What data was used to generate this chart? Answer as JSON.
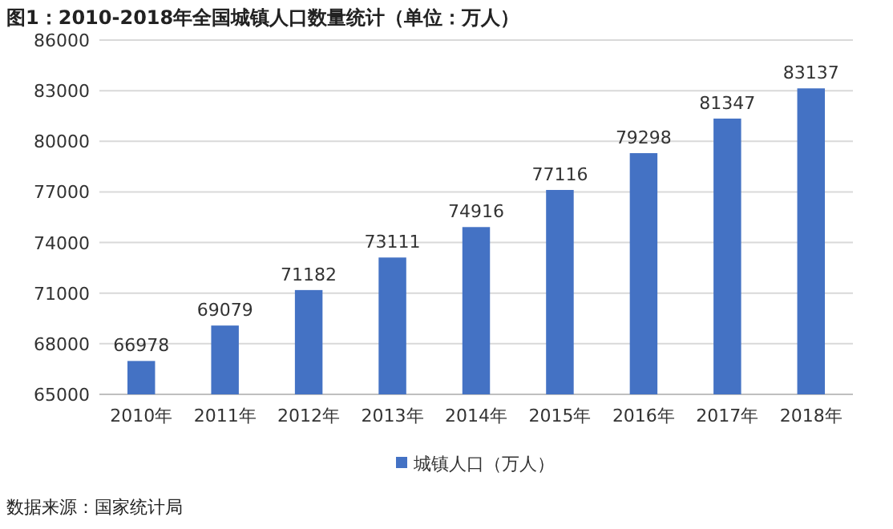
{
  "chart_data": {
    "type": "bar",
    "title": "图1：2010-2018年全国城镇人口数量统计（单位：万人）",
    "categories": [
      "2010年",
      "2011年",
      "2012年",
      "2013年",
      "2014年",
      "2015年",
      "2016年",
      "2017年",
      "2018年"
    ],
    "series": [
      {
        "name": "城镇人口（万人）",
        "color": "#4472c4",
        "values": [
          66978,
          69079,
          71182,
          73111,
          74916,
          77116,
          79298,
          81347,
          83137
        ]
      }
    ],
    "ylim": [
      65000,
      86000
    ],
    "yticks": [
      65000,
      68000,
      71000,
      74000,
      77000,
      80000,
      83000,
      86000
    ],
    "grid": "y",
    "legend": "bottom",
    "data_labels": true,
    "annotations": [
      "数据来源：国家统计局"
    ]
  }
}
